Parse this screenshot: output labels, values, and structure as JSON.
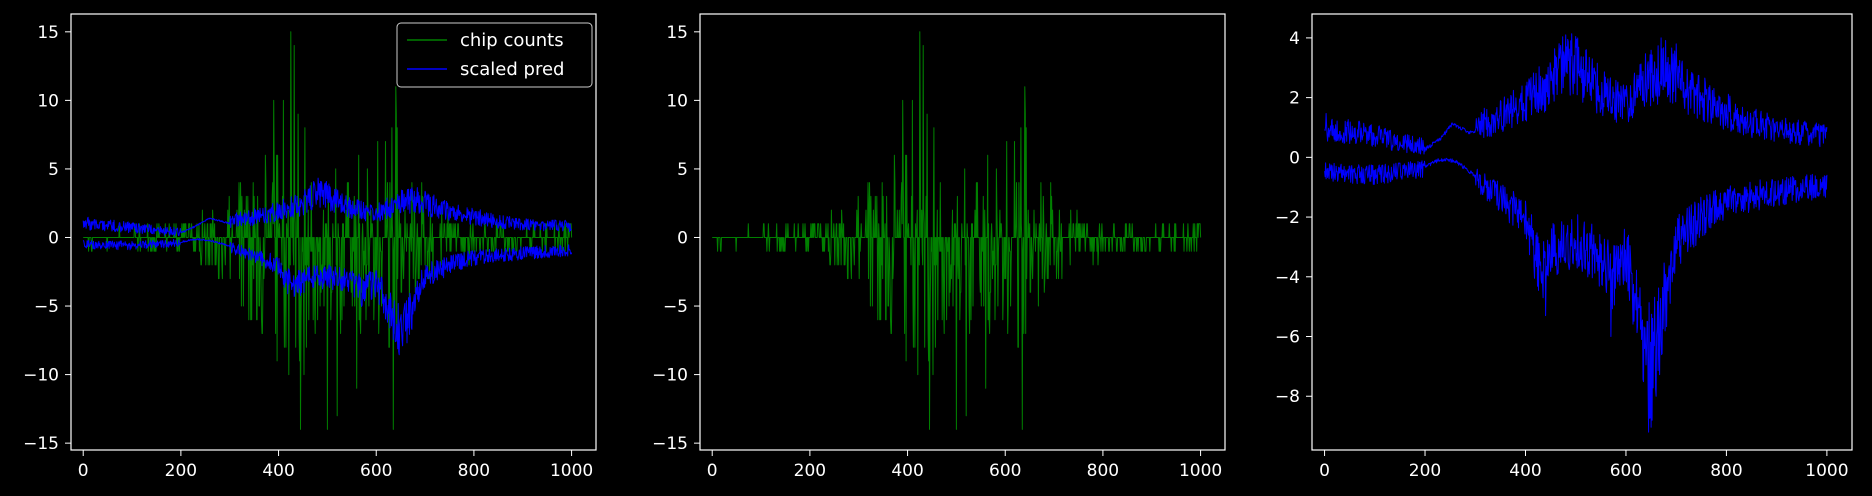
{
  "chart_data": [
    {
      "type": "line",
      "panel": "left",
      "xlim": [
        -25,
        1050
      ],
      "ylim": [
        -15.5,
        16.3
      ],
      "xticks": [
        0,
        200,
        400,
        600,
        800,
        1000
      ],
      "yticks": [
        -15,
        -10,
        -5,
        0,
        5,
        10,
        15
      ],
      "legend_position": "top-right",
      "legend": [
        {
          "label": "chip counts",
          "color": "#008000"
        },
        {
          "label": "scaled pred",
          "color": "#0000ff"
        }
      ],
      "series": [
        {
          "name": "chip counts",
          "color": "#008000",
          "style": "counts",
          "envelope": [
            [
              0,
              0.5
            ],
            [
              100,
              0.6
            ],
            [
              200,
              1.2
            ],
            [
              260,
              2.0
            ],
            [
              300,
              3.5
            ],
            [
              350,
              5.5
            ],
            [
              400,
              9.0
            ],
            [
              420,
              12.5
            ],
            [
              440,
              11.0
            ],
            [
              470,
              7.0
            ],
            [
              500,
              6.0
            ],
            [
              550,
              5.5
            ],
            [
              600,
              6.5
            ],
            [
              640,
              9.0
            ],
            [
              670,
              4.5
            ],
            [
              720,
              2.5
            ],
            [
              800,
              1.4
            ],
            [
              900,
              1.0
            ],
            [
              1000,
              0.9
            ]
          ],
          "spikes": [
            {
              "x": 425,
              "y": 15
            },
            {
              "x": 432,
              "y": 14
            },
            {
              "x": 445,
              "y": -14
            },
            {
              "x": 500,
              "y": -14
            },
            {
              "x": 520,
              "y": -13
            },
            {
              "x": 640,
              "y": 11
            },
            {
              "x": 635,
              "y": -14
            },
            {
              "x": 390,
              "y": 10
            },
            {
              "x": 560,
              "y": -11
            }
          ]
        },
        {
          "name": "scaled pred",
          "color": "#0000ff",
          "style": "bands",
          "upper_profile": [
            [
              0,
              0.9
            ],
            [
              100,
              0.6
            ],
            [
              200,
              0.3
            ],
            [
              230,
              0.8
            ],
            [
              260,
              1.4
            ],
            [
              300,
              1.0
            ],
            [
              350,
              1.3
            ],
            [
              400,
              1.7
            ],
            [
              450,
              2.2
            ],
            [
              480,
              3.0
            ],
            [
              520,
              2.4
            ],
            [
              560,
              1.8
            ],
            [
              600,
              1.5
            ],
            [
              640,
              2.2
            ],
            [
              680,
              2.5
            ],
            [
              720,
              2.0
            ],
            [
              780,
              1.5
            ],
            [
              850,
              1.0
            ],
            [
              900,
              0.8
            ],
            [
              1000,
              0.7
            ]
          ],
          "lower_profile": [
            [
              0,
              -0.4
            ],
            [
              100,
              -0.5
            ],
            [
              200,
              -0.3
            ],
            [
              230,
              -0.1
            ],
            [
              260,
              -0.2
            ],
            [
              300,
              -0.6
            ],
            [
              350,
              -1.2
            ],
            [
              400,
              -1.8
            ],
            [
              430,
              -3.5
            ],
            [
              450,
              -2.8
            ],
            [
              500,
              -2.5
            ],
            [
              540,
              -3.0
            ],
            [
              570,
              -3.5
            ],
            [
              600,
              -3.0
            ],
            [
              630,
              -5.0
            ],
            [
              650,
              -6.5
            ],
            [
              670,
              -5.0
            ],
            [
              700,
              -2.5
            ],
            [
              750,
              -1.8
            ],
            [
              800,
              -1.3
            ],
            [
              900,
              -1.0
            ],
            [
              1000,
              -0.8
            ]
          ]
        }
      ]
    },
    {
      "type": "line",
      "panel": "middle",
      "xlim": [
        -25,
        1050
      ],
      "ylim": [
        -15.5,
        16.3
      ],
      "xticks": [
        0,
        200,
        400,
        600,
        800,
        1000
      ],
      "yticks": [
        -15,
        -10,
        -5,
        0,
        5,
        10,
        15
      ],
      "series": [
        {
          "name": "chip counts",
          "color": "#008000",
          "style": "counts",
          "envelope": [
            [
              0,
              0.5
            ],
            [
              100,
              0.6
            ],
            [
              200,
              1.2
            ],
            [
              260,
              2.0
            ],
            [
              300,
              3.5
            ],
            [
              350,
              5.5
            ],
            [
              400,
              9.0
            ],
            [
              420,
              12.5
            ],
            [
              440,
              11.0
            ],
            [
              470,
              7.0
            ],
            [
              500,
              6.0
            ],
            [
              550,
              5.5
            ],
            [
              600,
              6.5
            ],
            [
              640,
              9.0
            ],
            [
              670,
              4.5
            ],
            [
              720,
              2.5
            ],
            [
              800,
              1.4
            ],
            [
              900,
              1.0
            ],
            [
              1000,
              0.9
            ]
          ],
          "spikes": [
            {
              "x": 425,
              "y": 15
            },
            {
              "x": 432,
              "y": 14
            },
            {
              "x": 445,
              "y": -14
            },
            {
              "x": 500,
              "y": -14
            },
            {
              "x": 520,
              "y": -13
            },
            {
              "x": 640,
              "y": 11
            },
            {
              "x": 635,
              "y": -14
            },
            {
              "x": 390,
              "y": 10
            },
            {
              "x": 560,
              "y": -11
            }
          ]
        }
      ]
    },
    {
      "type": "line",
      "panel": "right",
      "xlim": [
        -25,
        1050
      ],
      "ylim": [
        -9.8,
        4.8
      ],
      "xticks": [
        0,
        200,
        400,
        600,
        800,
        1000
      ],
      "yticks": [
        -8,
        -6,
        -4,
        -2,
        0,
        2,
        4
      ],
      "series": [
        {
          "name": "scaled pred",
          "color": "#0000ff",
          "style": "bands",
          "upper_profile": [
            [
              0,
              0.9
            ],
            [
              100,
              0.6
            ],
            [
              200,
              0.25
            ],
            [
              230,
              0.6
            ],
            [
              255,
              1.1
            ],
            [
              290,
              0.8
            ],
            [
              350,
              1.2
            ],
            [
              400,
              1.7
            ],
            [
              450,
              2.2
            ],
            [
              480,
              3.0
            ],
            [
              520,
              2.4
            ],
            [
              560,
              1.8
            ],
            [
              600,
              1.5
            ],
            [
              640,
              2.3
            ],
            [
              680,
              2.6
            ],
            [
              720,
              2.0
            ],
            [
              780,
              1.5
            ],
            [
              850,
              1.0
            ],
            [
              900,
              0.8
            ],
            [
              1000,
              0.6
            ]
          ],
          "lower_profile": [
            [
              0,
              -0.4
            ],
            [
              100,
              -0.5
            ],
            [
              200,
              -0.3
            ],
            [
              230,
              -0.05
            ],
            [
              260,
              -0.1
            ],
            [
              300,
              -0.6
            ],
            [
              350,
              -1.2
            ],
            [
              400,
              -1.8
            ],
            [
              430,
              -3.5
            ],
            [
              450,
              -2.8
            ],
            [
              500,
              -2.5
            ],
            [
              540,
              -3.0
            ],
            [
              570,
              -3.6
            ],
            [
              600,
              -3.0
            ],
            [
              630,
              -5.0
            ],
            [
              650,
              -6.5
            ],
            [
              670,
              -5.0
            ],
            [
              700,
              -2.6
            ],
            [
              750,
              -1.8
            ],
            [
              800,
              -1.3
            ],
            [
              900,
              -1.0
            ],
            [
              1000,
              -0.8
            ]
          ],
          "spikes": [
            {
              "x": 480,
              "y": 4.1
            },
            {
              "x": 670,
              "y": 4.0
            },
            {
              "x": 700,
              "y": 3.8
            },
            {
              "x": 645,
              "y": -9.2
            },
            {
              "x": 660,
              "y": -8.0
            },
            {
              "x": 440,
              "y": -5.3
            },
            {
              "x": 570,
              "y": -6.0
            }
          ]
        }
      ]
    }
  ]
}
